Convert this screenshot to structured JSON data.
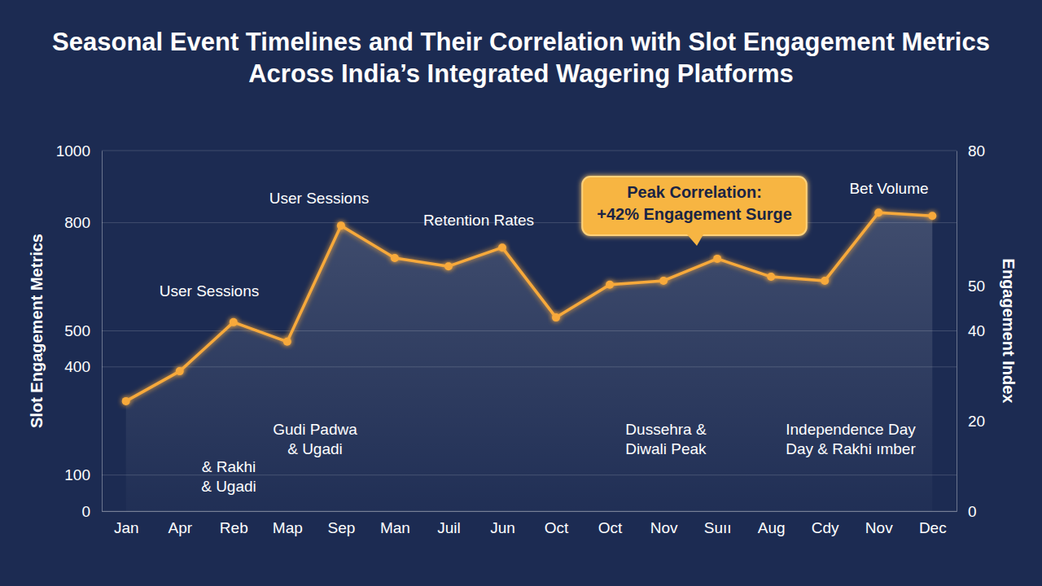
{
  "chart_data": {
    "type": "line",
    "title": "Seasonal Event Timelines and Their Correlation with Slot Engagement Metrics Across India’s Integrated Wagering Platforms",
    "y_label": "Slot Engagement Metrics",
    "y2_label": "Engagement Index",
    "categories": [
      "Jan",
      "Apr",
      "Reb",
      "Map",
      "Sep",
      "Man",
      "Juil",
      "Jun",
      "Oct",
      "Oct",
      "Nov",
      "Suıı",
      "Aug",
      "Cdy",
      "Nov",
      "Dec"
    ],
    "values": [
      305,
      388,
      524,
      470,
      792,
      702,
      679,
      731,
      537,
      628,
      639,
      700,
      650,
      639,
      828,
      819
    ],
    "color": "#f7a93b",
    "marker": "circle",
    "ylim": [
      0,
      1000
    ],
    "yticks": [
      0,
      100,
      400,
      500,
      800,
      1000
    ],
    "y2lim": [
      0,
      80
    ],
    "y2ticks": [
      0,
      20,
      40,
      50,
      80
    ],
    "grid": true,
    "annotations": [
      {
        "text": "User Sessions"
      },
      {
        "text": "User Sessions"
      },
      {
        "text": "Retention Rates"
      },
      {
        "text": "Bet Volume"
      },
      {
        "lines": [
          "Peak Correlation:",
          "+42% Engagement Surge"
        ]
      },
      {
        "lines": [
          "& Rakhi",
          "& Ugadi"
        ]
      },
      {
        "lines": [
          "Gudi Padwa",
          "& Ugadi"
        ]
      },
      {
        "lines": [
          "Dussehra &",
          "Diwali Peak"
        ]
      },
      {
        "lines": [
          "Independence Day",
          "Day & Rakhi ımber"
        ]
      }
    ]
  }
}
